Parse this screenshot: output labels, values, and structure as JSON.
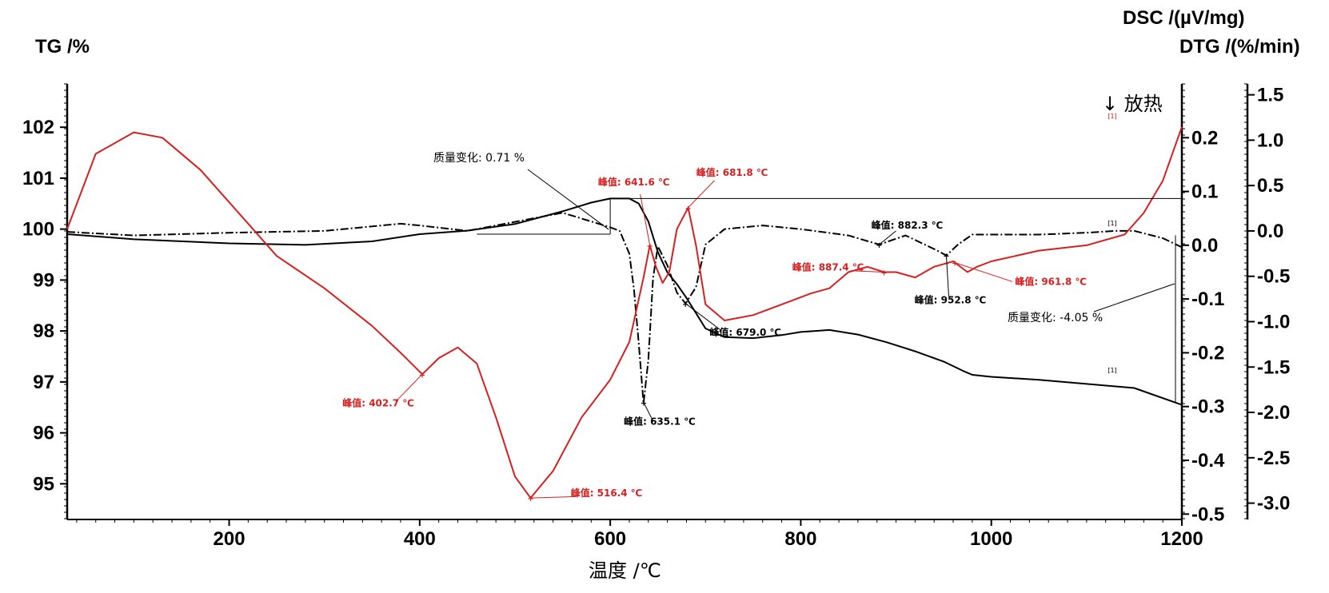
{
  "chart_data": {
    "type": "line",
    "xlabel": "温度 /℃",
    "ylabel_left": "TG /%",
    "ylabel_right_1": "DSC /(µV/mg)",
    "ylabel_right_2": "DTG /(%/min)",
    "exo_marker": "↓ 放热",
    "xlim": [
      30,
      1200
    ],
    "xticks": [
      200,
      400,
      600,
      800,
      1000,
      1200
    ],
    "tg_axis": {
      "ylim": [
        94.3,
        102.85
      ],
      "ticks": [
        95,
        96,
        97,
        98,
        99,
        100,
        101,
        102
      ]
    },
    "dsc_axis": {
      "ylim": [
        -0.51,
        0.3
      ],
      "ticks": [
        -0.5,
        -0.4,
        -0.3,
        -0.2,
        -0.1,
        0.0,
        0.1,
        0.2
      ],
      "tick_labels": [
        "-0.5",
        "-0.4",
        "-0.3",
        "-0.2",
        "-0.1",
        "0.0",
        "0.1",
        "0.2"
      ]
    },
    "dtg_axis": {
      "ylim": [
        -3.18,
        1.62
      ],
      "ticks": [
        -3.0,
        -2.5,
        -2.0,
        -1.5,
        -1.0,
        -0.5,
        0.0,
        0.5,
        1.0,
        1.5
      ],
      "tick_labels": [
        "-3.0",
        "-2.5",
        "-2.0",
        "-1.5",
        "-1.0",
        "-0.5",
        "0.0",
        "0.5",
        "1.0",
        "1.5"
      ]
    },
    "series": [
      {
        "name": "TG",
        "axis": "tg",
        "color": "#000000",
        "style": "solid",
        "x": [
          30,
          100,
          200,
          280,
          350,
          400,
          450,
          500,
          550,
          580,
          600,
          620,
          630,
          640,
          650,
          660,
          670,
          680,
          690,
          700,
          720,
          750,
          780,
          800,
          830,
          860,
          890,
          920,
          950,
          970,
          980,
          1000,
          1050,
          1100,
          1150,
          1200
        ],
        "y": [
          99.9,
          99.8,
          99.72,
          99.69,
          99.76,
          99.9,
          99.97,
          100.1,
          100.35,
          100.52,
          100.6,
          100.6,
          100.5,
          100.15,
          99.55,
          99.15,
          98.92,
          98.65,
          98.35,
          98.05,
          97.88,
          97.86,
          97.92,
          97.98,
          98.02,
          97.93,
          97.78,
          97.6,
          97.4,
          97.22,
          97.14,
          97.1,
          97.04,
          96.96,
          96.88,
          96.55
        ]
      },
      {
        "name": "DTG",
        "axis": "dtg",
        "color": "#000000",
        "style": "dashdot",
        "x": [
          30,
          100,
          200,
          300,
          380,
          400,
          450,
          500,
          550,
          600,
          610,
          620,
          625,
          630,
          635,
          640,
          645,
          650,
          660,
          670,
          679,
          690,
          700,
          720,
          760,
          800,
          850,
          882.3,
          910,
          940,
          952.8,
          965,
          980,
          1050,
          1100,
          1130,
          1150,
          1180,
          1200
        ],
        "y": [
          -0.01,
          -0.05,
          -0.02,
          0.0,
          0.08,
          0.06,
          0.0,
          0.1,
          0.2,
          0.04,
          0.0,
          -0.25,
          -0.65,
          -1.25,
          -1.9,
          -1.42,
          -0.52,
          -0.17,
          -0.38,
          -0.68,
          -0.8,
          -0.62,
          -0.15,
          0.02,
          0.06,
          0.02,
          -0.05,
          -0.15,
          -0.05,
          -0.2,
          -0.27,
          -0.15,
          -0.04,
          -0.04,
          -0.02,
          0.0,
          0.0,
          -0.08,
          -0.18
        ]
      },
      {
        "name": "DSC",
        "axis": "dsc",
        "color": "#d42020",
        "style": "solid",
        "x": [
          30,
          60,
          100,
          130,
          170,
          220,
          250,
          300,
          350,
          380,
          402.7,
          420,
          440,
          460,
          480,
          500,
          516.4,
          540,
          570,
          600,
          620,
          635,
          641.6,
          648,
          655,
          662,
          670,
          681.8,
          690,
          700,
          720,
          750,
          780,
          810,
          830,
          850,
          870,
          887.4,
          900,
          920,
          940,
          960,
          975,
          985,
          1000,
          1050,
          1100,
          1140,
          1160,
          1180,
          1200
        ],
        "y": [
          0.03,
          0.17,
          0.21,
          0.2,
          0.14,
          0.04,
          -0.02,
          -0.08,
          -0.15,
          -0.2,
          -0.24,
          -0.21,
          -0.19,
          -0.22,
          -0.32,
          -0.43,
          -0.47,
          -0.42,
          -0.32,
          -0.25,
          -0.18,
          -0.06,
          0.0,
          -0.04,
          -0.07,
          -0.05,
          0.03,
          0.07,
          0.0,
          -0.11,
          -0.14,
          -0.13,
          -0.11,
          -0.09,
          -0.08,
          -0.05,
          -0.04,
          -0.05,
          -0.05,
          -0.06,
          -0.04,
          -0.03,
          -0.05,
          -0.04,
          -0.03,
          -0.01,
          0.0,
          0.02,
          0.06,
          0.12,
          0.22
        ]
      }
    ],
    "annotations": [
      {
        "text": "峰值: 402.7 ℃",
        "color": "red",
        "x": 402.7,
        "series": "DSC"
      },
      {
        "text": "峰值: 516.4 ℃",
        "color": "red",
        "x": 516.4,
        "series": "DSC"
      },
      {
        "text": "峰值: 641.6 ℃",
        "color": "red",
        "x": 641.6,
        "series": "DSC"
      },
      {
        "text": "峰值: 681.8 ℃",
        "color": "red",
        "x": 681.8,
        "series": "DSC"
      },
      {
        "text": "峰值: 887.4 ℃",
        "color": "red",
        "x": 887.4,
        "series": "DSC"
      },
      {
        "text": "峰值: 961.8 ℃",
        "color": "red",
        "x": 961.8,
        "series": "DSC"
      },
      {
        "text": "峰值: 635.1 ℃",
        "color": "black",
        "x": 635.1,
        "series": "DTG"
      },
      {
        "text": "峰值: 679.0 ℃",
        "color": "black",
        "x": 679.0,
        "series": "DTG"
      },
      {
        "text": "峰值: 882.3 ℃",
        "color": "black",
        "x": 882.3,
        "series": "DTG"
      },
      {
        "text": "峰值: 952.8 ℃",
        "color": "black",
        "x": 952.8,
        "series": "DTG"
      }
    ],
    "mass_changes": [
      {
        "text": "质量变化: 0.71 %",
        "from_x": 30,
        "to_x": 600,
        "from_y": 99.9,
        "to_y": 100.6
      },
      {
        "text": "质量变化: -4.05 %",
        "from_x": 600,
        "to_x": 1200,
        "from_y": 100.6,
        "to_y": 96.55
      }
    ],
    "curve_markers": "[1]"
  }
}
